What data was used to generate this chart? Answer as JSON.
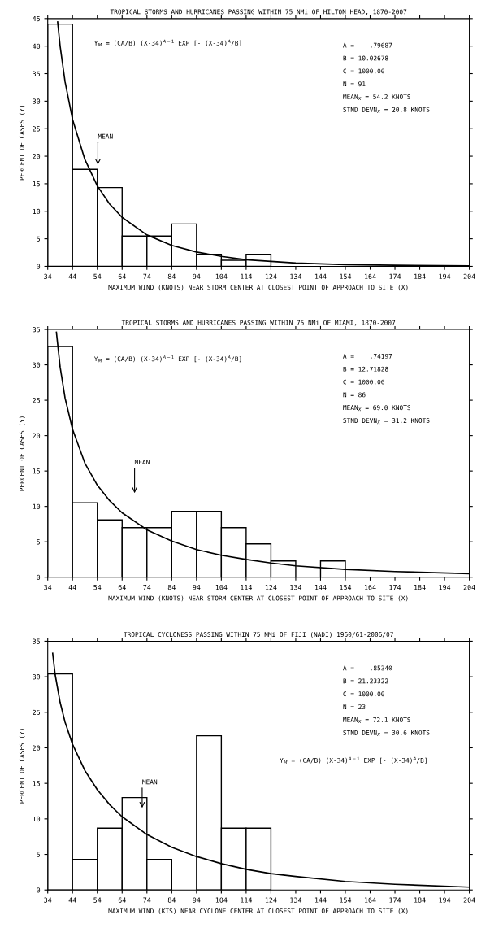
{
  "chart_data": [
    {
      "type": "histogram",
      "title": "TROPICAL STORMS AND HURRICANES PASSING WITHIN 75 NMi OF HILTON HEAD, 1870-2007",
      "xlabel": "MAXIMUM WIND (KNOTS) NEAR STORM CENTER AT CLOSEST POINT OF APPROACH TO SITE (X)",
      "ylabel": "PERCENT OF CASES (Y)",
      "bins": [
        34,
        44,
        54,
        64,
        74,
        84,
        94,
        104,
        114,
        124,
        134,
        144,
        154,
        164,
        174,
        184,
        194,
        204
      ],
      "values": [
        44.0,
        17.6,
        14.3,
        5.5,
        5.5,
        7.7,
        2.2,
        1.1,
        2.2,
        0,
        0,
        0,
        0,
        0,
        0,
        0,
        0
      ],
      "color": "#000000",
      "series": [
        {
          "type": "line",
          "color": "#000000",
          "x": [
            38,
            39,
            41,
            44,
            49,
            54,
            59,
            64,
            74,
            84,
            94,
            104,
            114,
            124,
            134,
            154,
            174,
            204
          ],
          "values": [
            44.4,
            40.0,
            33.5,
            26.7,
            19.4,
            14.6,
            11.3,
            8.9,
            5.7,
            3.8,
            2.6,
            1.8,
            1.2,
            0.9,
            0.6,
            0.3,
            0.2,
            0.1
          ]
        }
      ],
      "xlim": [
        34,
        204
      ],
      "xticks": [
        34,
        44,
        54,
        64,
        74,
        84,
        94,
        104,
        114,
        124,
        134,
        144,
        154,
        164,
        174,
        184,
        194,
        204
      ],
      "ylim": [
        0,
        45
      ],
      "yticks": [
        0,
        5,
        10,
        15,
        20,
        25,
        30,
        35,
        40,
        45
      ],
      "annotations": [
        "Y$_{M}$ = (CA/B) (X-34)$^{A−1}$ EXP [- (X-34)$^{A}$/B]",
        "A =    .79687",
        "B = 10.02678",
        "C = 1000.00",
        "N = 91",
        "MEAN$_{X}$ = 54.2 KNOTS",
        "STND DEVN$_{X}$ = 20.8 KNOTS",
        "MEAN"
      ]
    },
    {
      "type": "histogram",
      "title": "TROPICAL STORMS AND HURRICANES PASSING WITHIN 75 NMi OF MIAMI, 1870-2007",
      "xlabel": "MAXIMUM WIND (KNOTS) NEAR STORM CENTER AT CLOSEST POINT OF APPROACH TO SITE (X)",
      "ylabel": "PERCENT OF CASES (Y)",
      "bins": [
        34,
        44,
        54,
        64,
        74,
        84,
        94,
        104,
        114,
        124,
        134,
        144,
        154,
        164,
        174,
        184,
        194,
        204
      ],
      "values": [
        32.6,
        10.5,
        8.1,
        7.0,
        7.0,
        9.3,
        9.3,
        7.0,
        4.7,
        2.3,
        0,
        2.3,
        0,
        0,
        0,
        0,
        0
      ],
      "color": "#000000",
      "series": [
        {
          "type": "line",
          "color": "#000000",
          "x": [
            37.5,
            39,
            41,
            44,
            49,
            54,
            59,
            64,
            74,
            84,
            94,
            104,
            114,
            124,
            134,
            154,
            174,
            204
          ],
          "values": [
            34.6,
            29.7,
            25.3,
            20.9,
            16.1,
            13.0,
            10.8,
            9.1,
            6.7,
            5.1,
            3.9,
            3.1,
            2.5,
            2.0,
            1.6,
            1.1,
            0.8,
            0.5
          ]
        }
      ],
      "xlim": [
        34,
        204
      ],
      "xticks": [
        34,
        44,
        54,
        64,
        74,
        84,
        94,
        104,
        114,
        124,
        134,
        144,
        154,
        164,
        174,
        184,
        194,
        204
      ],
      "ylim": [
        0,
        35
      ],
      "yticks": [
        0,
        5,
        10,
        15,
        20,
        25,
        30,
        35
      ],
      "annotations": [
        "Y$_{M}$ = (CA/B) (X-34)$^{A−1}$ EXP [- (X-34)$^{A}$/B]",
        "A =    .74197",
        "B = 12.71828",
        "C = 1000.00",
        "N = 86",
        "MEAN$_{X}$ = 69.0 KNOTS",
        "STND DEVN$_{X}$ = 31.2 KNOTS",
        "MEAN"
      ]
    },
    {
      "type": "histogram",
      "title": "TROPICAL CYCLONESS PASSING WITHIN 75 NMi OF FIJI (NADI) 1960/61-2006/07",
      "xlabel": "MAXIMUM WIND (KTS) NEAR CYCLONE CENTER AT CLOSEST POINT OF APPROACH TO SITE (X)",
      "ylabel": "PERCENT OF CASES (Y)",
      "bins": [
        34,
        44,
        54,
        64,
        74,
        84,
        94,
        104,
        114,
        124,
        134,
        144,
        154,
        164,
        174,
        184,
        194,
        204
      ],
      "values": [
        30.4,
        4.3,
        8.7,
        13.0,
        4.3,
        0,
        21.7,
        8.7,
        8.7,
        0,
        0,
        0,
        0,
        0,
        0,
        0,
        0
      ],
      "color": "#000000",
      "series": [
        {
          "type": "line",
          "color": "#000000",
          "x": [
            36,
            37,
            39,
            41,
            44,
            49,
            54,
            59,
            64,
            74,
            84,
            94,
            104,
            114,
            124,
            134,
            154,
            174,
            204
          ],
          "values": [
            33.3,
            30.3,
            26.4,
            23.6,
            20.5,
            16.8,
            14.1,
            12.0,
            10.3,
            7.8,
            6.0,
            4.7,
            3.7,
            2.9,
            2.3,
            1.9,
            1.2,
            0.8,
            0.4
          ]
        }
      ],
      "xlim": [
        34,
        204
      ],
      "xticks": [
        34,
        44,
        54,
        64,
        74,
        84,
        94,
        104,
        114,
        124,
        134,
        144,
        154,
        164,
        174,
        184,
        194,
        204
      ],
      "ylim": [
        0,
        35
      ],
      "yticks": [
        0,
        5,
        10,
        15,
        20,
        25,
        30,
        35
      ],
      "annotations": [
        "Y$_{M}$ = (CA/B) (X-34)$^{A−1}$ EXP [- (X-34)$^{A}$/B]",
        "A =    .85340",
        "B = 21.23322",
        "C = 1000.00",
        "N = 23",
        "MEAN$_{X}$ = 72.1 KNOTS",
        "STND DEVN$_{X}$ = 30.6 KNOTS",
        "MEAN"
      ]
    }
  ]
}
